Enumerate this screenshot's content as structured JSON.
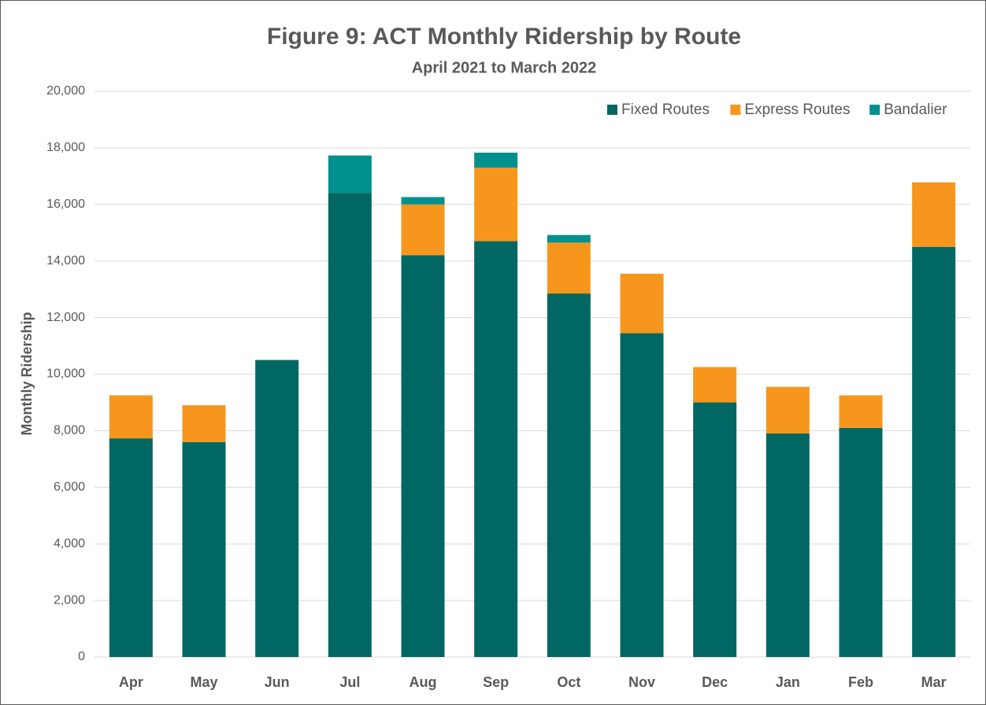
{
  "chart_data": {
    "type": "stacked_bar",
    "title": "Figure 9: ACT Monthly Ridership by Route",
    "subtitle": "April 2021 to March 2022",
    "y_label": "Monthly Ridership",
    "categories": [
      "Apr",
      "May",
      "Jun",
      "Jul",
      "Aug",
      "Sep",
      "Oct",
      "Nov",
      "Dec",
      "Jan",
      "Feb",
      "Mar"
    ],
    "series": [
      {
        "name": "Fixed Routes",
        "color": "#006763",
        "values": [
          7730,
          7600,
          10500,
          16400,
          14200,
          14700,
          12850,
          11450,
          9000,
          7900,
          8100,
          14500
        ]
      },
      {
        "name": "Express Routes",
        "color": "#F7961D",
        "values": [
          1520,
          1300,
          0,
          0,
          1800,
          2600,
          1800,
          2100,
          1250,
          1650,
          1150,
          2280
        ]
      },
      {
        "name": "Bandalier",
        "color": "#00918E",
        "values": [
          0,
          0,
          0,
          1330,
          260,
          530,
          270,
          0,
          0,
          0,
          0,
          0
        ]
      }
    ],
    "ylim": [
      0,
      20000
    ],
    "yticks": [
      0,
      {
        "value": 2000,
        "label": "2,000"
      },
      {
        "value": 4000,
        "label": "4,000"
      },
      {
        "value": 6000,
        "label": "6,000"
      },
      {
        "value": 8000,
        "label": "8,000"
      },
      {
        "value": 10000,
        "label": "10,000"
      },
      {
        "value": 12000,
        "label": "12,000"
      },
      {
        "value": 14000,
        "label": "14,000"
      },
      {
        "value": 16000,
        "label": "16,000"
      },
      {
        "value": 18000,
        "label": "18,000"
      },
      {
        "value": 20000,
        "label": "20,000"
      }
    ],
    "grid": true,
    "legend": "top-right"
  }
}
